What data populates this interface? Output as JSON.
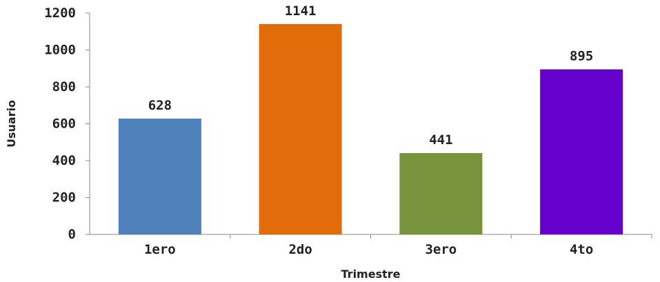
{
  "chart_data": {
    "type": "bar",
    "title": "",
    "xlabel": "Trimestre",
    "ylabel": "Usuario",
    "categories": [
      "1ero",
      "2do",
      "3ero",
      "4to"
    ],
    "values": [
      628,
      1141,
      441,
      895
    ],
    "data_labels": [
      "628",
      "1141",
      "441",
      "895"
    ],
    "colors": [
      "#4F81BD",
      "#E36C0A",
      "#77933C",
      "#6600CC"
    ],
    "ylim": [
      0,
      1200
    ],
    "yticks": [
      0,
      200,
      400,
      600,
      800,
      1000,
      1200
    ],
    "grid": false,
    "legend": "none"
  }
}
